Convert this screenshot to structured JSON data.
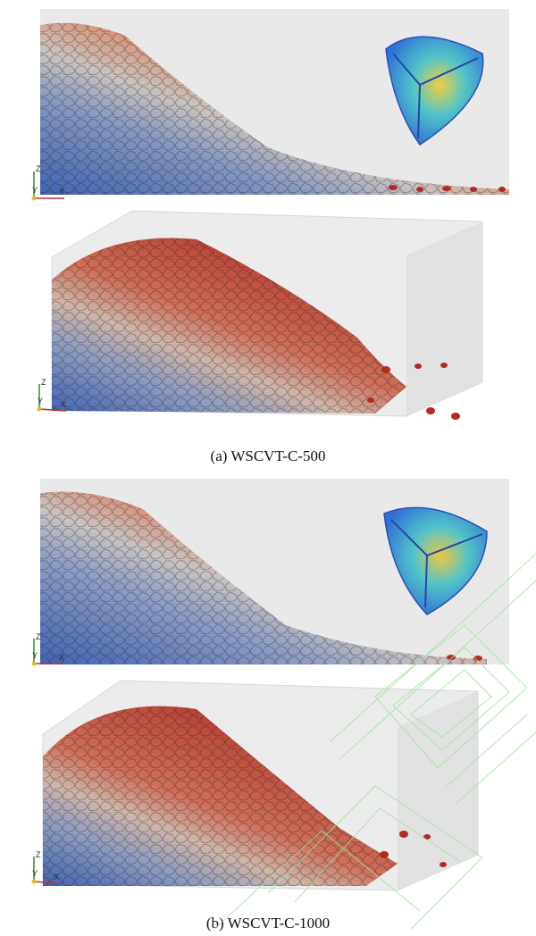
{
  "figure": {
    "caption_a": "(a) WSCVT-C-500",
    "caption_b": "(b) WSCVT-C-1000"
  },
  "axes_triad": {
    "z": "Z",
    "y": "Y",
    "x": "X"
  },
  "colors": {
    "red": "#b8322d",
    "salmon": "#d78a70",
    "grey": "#b9bcc4",
    "blue": "#4d70b8",
    "box": "#e8e8e8",
    "particle_mesh": "#2aa3d8"
  }
}
